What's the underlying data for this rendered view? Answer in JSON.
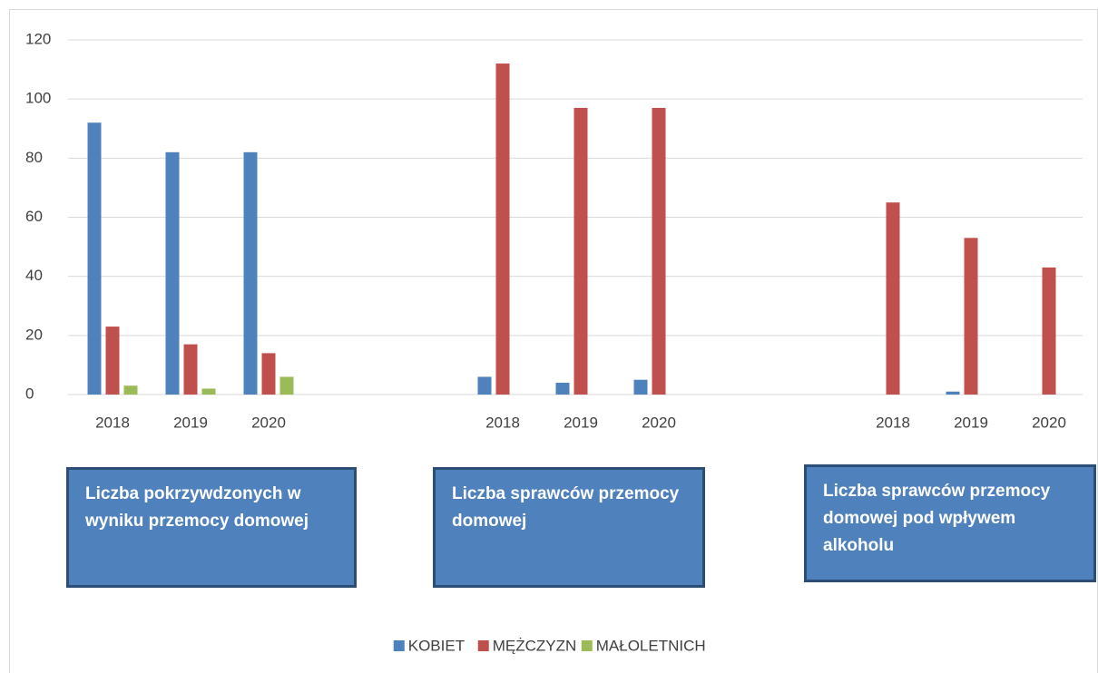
{
  "chart_data": {
    "type": "bar",
    "categories": [
      "2018",
      "2019",
      "2020",
      null,
      null,
      "2018",
      "2019",
      "2020",
      null,
      null,
      "2018",
      "2019",
      "2020"
    ],
    "series": [
      {
        "name": "KOBIET",
        "color": "#4f81bd",
        "values": [
          92,
          82,
          82,
          null,
          null,
          6,
          4,
          5,
          null,
          null,
          0,
          1,
          0
        ]
      },
      {
        "name": "MĘŻCZYZN",
        "color": "#c0504d",
        "values": [
          23,
          17,
          14,
          null,
          null,
          112,
          97,
          97,
          null,
          null,
          65,
          53,
          43
        ]
      },
      {
        "name": "MAŁOLETNICH",
        "color": "#9bbb59",
        "values": [
          3,
          2,
          6,
          null,
          null,
          0,
          0,
          0,
          null,
          null,
          0,
          0,
          0
        ]
      }
    ],
    "ylim": [
      0,
      120
    ],
    "yticks": [
      0,
      20,
      40,
      60,
      80,
      100,
      120
    ],
    "grid": true,
    "legend": "bottom",
    "annotations": [
      "Liczba pokrzywdzonych w wyniku przemocy domowej",
      "Liczba sprawców przemocy domowej",
      "Liczba sprawców przemocy domowej pod wpływem alkoholu"
    ]
  }
}
